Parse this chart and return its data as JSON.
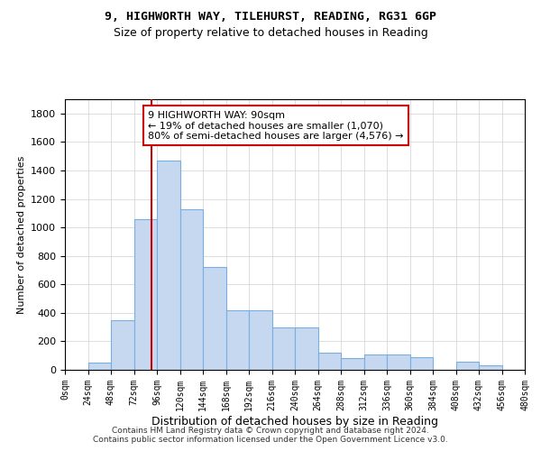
{
  "title_line1": "9, HIGHWORTH WAY, TILEHURST, READING, RG31 6GP",
  "title_line2": "Size of property relative to detached houses in Reading",
  "xlabel": "Distribution of detached houses by size in Reading",
  "ylabel": "Number of detached properties",
  "bar_values": [
    0,
    50,
    350,
    1060,
    1470,
    1130,
    720,
    420,
    420,
    300,
    300,
    120,
    80,
    110,
    110,
    90,
    0,
    60,
    30,
    0
  ],
  "bin_edges": [
    0,
    24,
    48,
    72,
    96,
    120,
    144,
    168,
    192,
    216,
    240,
    264,
    288,
    312,
    336,
    360,
    384,
    408,
    432,
    456,
    480
  ],
  "bar_color": "#c5d8f0",
  "bar_edgecolor": "#7aade0",
  "property_size": 90,
  "red_line_color": "#cc0000",
  "annotation_line1": "9 HIGHWORTH WAY: 90sqm",
  "annotation_line2": "← 19% of detached houses are smaller (1,070)",
  "annotation_line3": "80% of semi-detached houses are larger (4,576) →",
  "annotation_box_edgecolor": "#cc0000",
  "annotation_box_facecolor": "#ffffff",
  "ylim": [
    0,
    1900
  ],
  "yticks": [
    0,
    200,
    400,
    600,
    800,
    1000,
    1200,
    1400,
    1600,
    1800
  ],
  "footer_line1": "Contains HM Land Registry data © Crown copyright and database right 2024.",
  "footer_line2": "Contains public sector information licensed under the Open Government Licence v3.0.",
  "background_color": "#ffffff",
  "grid_color": "#d0d0d0",
  "title_fontsize": 9.5,
  "subtitle_fontsize": 9,
  "annotation_fontsize": 8,
  "ylabel_fontsize": 8,
  "xlabel_fontsize": 9,
  "footer_fontsize": 6.5
}
